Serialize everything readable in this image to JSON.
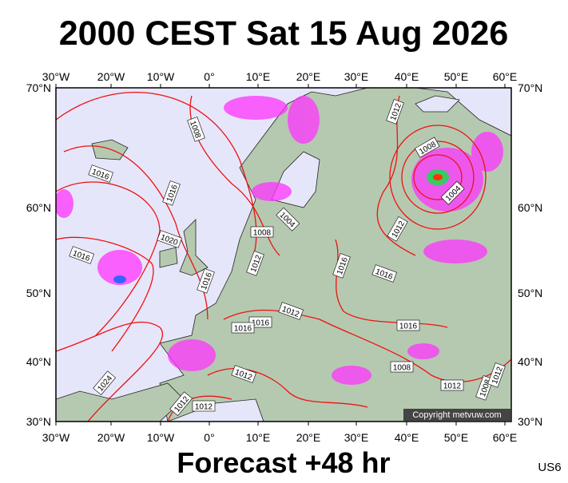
{
  "header": {
    "title": "2000 CEST Sat 15 Aug 2026"
  },
  "map": {
    "lon_labels": [
      "30°W",
      "20°W",
      "10°W",
      "0°",
      "10°E",
      "20°E",
      "30°E",
      "40°E",
      "50°E",
      "60°E"
    ],
    "lat_labels": [
      "70°N",
      "60°N",
      "50°N",
      "40°N",
      "30°N"
    ],
    "isobar_labels": [
      "1008",
      "1012",
      "1008",
      "1004",
      "1016",
      "1016",
      "1004",
      "1008",
      "1012",
      "1020",
      "1016",
      "1012",
      "1016",
      "1016",
      "1016",
      "1012",
      "1016",
      "1016",
      "1016",
      "1008",
      "1012",
      "1024",
      "1012",
      "1012",
      "1012",
      "1008",
      "1012"
    ],
    "copyright": "Copyright metvuw.com"
  },
  "footer": {
    "forecast": "Forecast +48 hr",
    "code": "US6"
  }
}
